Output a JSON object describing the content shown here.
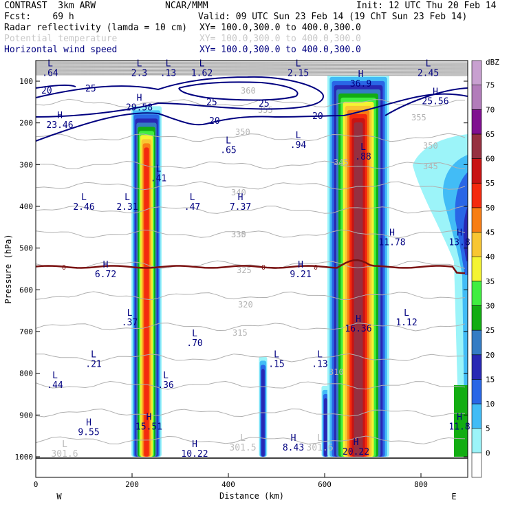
{
  "header": {
    "line1_left": "CONTRAST  3km ARW",
    "line1_center": "NCAR/MMM",
    "line1_right": "Init: 12 UTC Thu 20 Feb 14",
    "line2_left": "Fcst:    69 h",
    "line2_right": "Valid: 09 UTC Sun 23 Feb 14 (19 ChT Sun 23 Feb 14)",
    "fields": [
      {
        "name": "Radar reflectivity (lamda = 10 cm)",
        "xy": "XY= 100.0,300.0 to 400.0,300.0",
        "color": "#000000"
      },
      {
        "name": "Potential temperature",
        "xy": "XY= 100.0,300.0 to 400.0,300.0",
        "color": "#c8c8c8"
      },
      {
        "name": "Horizontal wind speed",
        "xy": "XY= 100.0,300.0 to 400.0,300.0",
        "color": "#000080"
      }
    ]
  },
  "chart_data": {
    "type": "heatmap",
    "xlabel": "Distance (km)",
    "ylabel": "Pressure (hPa)",
    "x_ticks": [
      0,
      200,
      400,
      600,
      800
    ],
    "y_ticks": [
      100,
      200,
      300,
      400,
      500,
      600,
      700,
      800,
      900,
      1000
    ],
    "xlim": [
      0,
      900
    ],
    "ylim": [
      1000,
      50
    ],
    "left_end_label": "W",
    "right_end_label": "E",
    "colorbar": {
      "unit": "dBZ",
      "levels": [
        0,
        5,
        10,
        15,
        20,
        25,
        30,
        35,
        40,
        45,
        50,
        55,
        60,
        65,
        70,
        75
      ],
      "colors": [
        "#ffffff",
        "#9cf4f9",
        "#42bcf6",
        "#2966e6",
        "#2828b4",
        "#347cc4",
        "#12ad12",
        "#40ee40",
        "#f4f432",
        "#f8c632",
        "#f87e14",
        "#f42a0e",
        "#c81414",
        "#963040",
        "#801090",
        "#b27cba",
        "#c8a0d0"
      ]
    },
    "reflectivity_columns": [
      {
        "name": "column-230km",
        "x": 230,
        "p_top": 160,
        "p_bottom": 1000,
        "max_dbz": 55
      },
      {
        "name": "column-470km",
        "x": 472,
        "p_top": 760,
        "p_bottom": 1000,
        "max_dbz": 20
      },
      {
        "name": "column-600km",
        "x": 602,
        "p_top": 830,
        "p_bottom": 1000,
        "max_dbz": 20
      },
      {
        "name": "column-670km",
        "x": 670,
        "p_top": 80,
        "p_bottom": 1000,
        "max_dbz": 70
      },
      {
        "name": "anvil-east",
        "x": 860,
        "p_top": 200,
        "p_bottom": 1000,
        "max_dbz": 20
      }
    ],
    "freezing_level": {
      "label": "0",
      "p": 545
    },
    "theta_contours": [
      {
        "value": "301.5"
      },
      {
        "value": "310"
      },
      {
        "value": "315"
      },
      {
        "value": "320"
      },
      {
        "value": "325"
      },
      {
        "value": "330"
      },
      {
        "value": "335"
      },
      {
        "value": "340"
      },
      {
        "value": "345"
      },
      {
        "value": "350"
      },
      {
        "value": "355"
      },
      {
        "value": "360"
      }
    ],
    "wind_contours": [
      {
        "value": "20"
      },
      {
        "value": "25"
      }
    ],
    "annotations": [
      {
        "label": "L",
        "value": ".64",
        "x": 30,
        "p": 88,
        "color": "#000080"
      },
      {
        "label": "L",
        "value": "2.3",
        "x": 215,
        "p": 88,
        "color": "#000080"
      },
      {
        "label": "L",
        "value": ".13",
        "x": 275,
        "p": 88,
        "color": "#000080"
      },
      {
        "label": "L",
        "value": "1.62",
        "x": 345,
        "p": 88,
        "color": "#000080"
      },
      {
        "label": "L",
        "value": "2.15",
        "x": 545,
        "p": 88,
        "color": "#000080"
      },
      {
        "label": "L",
        "value": "2.45",
        "x": 815,
        "p": 88,
        "color": "#000080"
      },
      {
        "label": "H",
        "value": "36.9",
        "x": 675,
        "p": 113,
        "color": "#000080"
      },
      {
        "label": "H",
        "value": "29.58",
        "x": 215,
        "p": 170,
        "color": "#000080"
      },
      {
        "label": "H",
        "value": "25.56",
        "x": 830,
        "p": 155,
        "color": "#000080"
      },
      {
        "label": "H",
        "value": "23.46",
        "x": 50,
        "p": 212,
        "color": "#000080"
      },
      {
        "label": "L",
        "value": ".65",
        "x": 400,
        "p": 272,
        "color": "#000080"
      },
      {
        "label": "L",
        "value": ".94",
        "x": 545,
        "p": 260,
        "color": "#000080"
      },
      {
        "label": "L",
        "value": ".88",
        "x": 680,
        "p": 288,
        "color": "#000080"
      },
      {
        "label": "L",
        "value": ".41",
        "x": 255,
        "p": 340,
        "color": "#000080"
      },
      {
        "label": "L",
        "value": "2.46",
        "x": 100,
        "p": 408,
        "color": "#000080"
      },
      {
        "label": "L",
        "value": "2.31",
        "x": 190,
        "p": 408,
        "color": "#000080"
      },
      {
        "label": "L",
        "value": ".47",
        "x": 325,
        "p": 408,
        "color": "#000080"
      },
      {
        "label": "H",
        "value": "7.37",
        "x": 425,
        "p": 408,
        "color": "#000080"
      },
      {
        "label": "H",
        "value": "11.78",
        "x": 740,
        "p": 493,
        "color": "#000080"
      },
      {
        "label": "H",
        "value": "13.8",
        "x": 880,
        "p": 493,
        "color": "#000080"
      },
      {
        "label": "H",
        "value": "6.72",
        "x": 145,
        "p": 570,
        "color": "#000080"
      },
      {
        "label": "H",
        "value": "9.21",
        "x": 550,
        "p": 570,
        "color": "#000080"
      },
      {
        "label": "L",
        "value": ".37",
        "x": 195,
        "p": 685,
        "color": "#000080"
      },
      {
        "label": "H",
        "value": "16.36",
        "x": 670,
        "p": 700,
        "color": "#000080"
      },
      {
        "label": "L",
        "value": "1.12",
        "x": 770,
        "p": 685,
        "color": "#000080"
      },
      {
        "label": "L",
        "value": ".70",
        "x": 330,
        "p": 735,
        "color": "#000080"
      },
      {
        "label": "L",
        "value": ".21",
        "x": 120,
        "p": 785,
        "color": "#000080"
      },
      {
        "label": "L",
        "value": ".15",
        "x": 500,
        "p": 785,
        "color": "#000080"
      },
      {
        "label": "L",
        "value": ".13",
        "x": 590,
        "p": 785,
        "color": "#000080"
      },
      {
        "label": "L",
        "value": ".44",
        "x": 40,
        "p": 835,
        "color": "#000080"
      },
      {
        "label": "L",
        "value": ".36",
        "x": 270,
        "p": 835,
        "color": "#000080"
      },
      {
        "label": "H",
        "value": "9.55",
        "x": 110,
        "p": 948,
        "color": "#000080"
      },
      {
        "label": "H",
        "value": "15.51",
        "x": 235,
        "p": 935,
        "color": "#000080"
      },
      {
        "label": "H",
        "value": "11.8",
        "x": 880,
        "p": 935,
        "color": "#000080"
      },
      {
        "label": "L",
        "value": "301.6",
        "x": 60,
        "p": 1000,
        "color": "#bbbbbb"
      },
      {
        "label": "H",
        "value": "10.22",
        "x": 330,
        "p": 1000,
        "color": "#000080"
      },
      {
        "label": "L",
        "value": "301.5",
        "x": 430,
        "p": 985,
        "color": "#bbbbbb"
      },
      {
        "label": "H",
        "value": "8.43",
        "x": 535,
        "p": 985,
        "color": "#000080"
      },
      {
        "label": "L",
        "value": "301.6",
        "x": 590,
        "p": 985,
        "color": "#bbbbbb"
      },
      {
        "label": "H",
        "value": "20.22",
        "x": 665,
        "p": 995,
        "color": "#000080"
      }
    ]
  }
}
